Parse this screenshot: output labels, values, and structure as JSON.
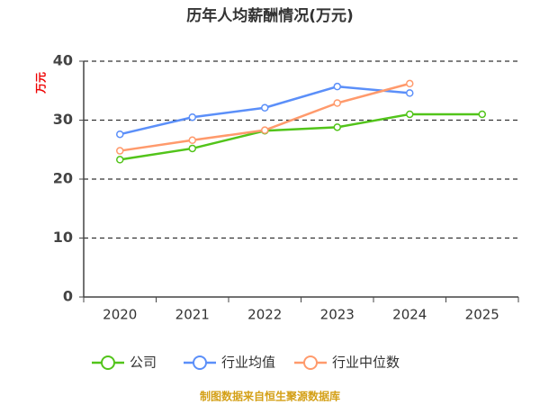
{
  "chart_data": {
    "type": "line",
    "title": "历年人均薪酬情况(万元)",
    "y_label": "万元",
    "categories": [
      "2020",
      "2021",
      "2022",
      "2023",
      "2024",
      "2025"
    ],
    "series": [
      {
        "name": "公司",
        "color": "#52c41a",
        "values": [
          23.3,
          25.2,
          28.2,
          28.8,
          31.0,
          31.0
        ]
      },
      {
        "name": "行业均值",
        "color": "#5b8ff9",
        "values": [
          27.6,
          30.5,
          32.1,
          35.7,
          34.6,
          null
        ]
      },
      {
        "name": "行业中位数",
        "color": "#ff9a6c",
        "values": [
          24.8,
          26.6,
          28.3,
          32.9,
          36.2,
          null
        ]
      }
    ],
    "ylim": [
      0,
      40
    ],
    "yticks": [
      0,
      10,
      20,
      30,
      40
    ],
    "grid": true,
    "footer": "制图数据来自恒生聚源数据库"
  }
}
